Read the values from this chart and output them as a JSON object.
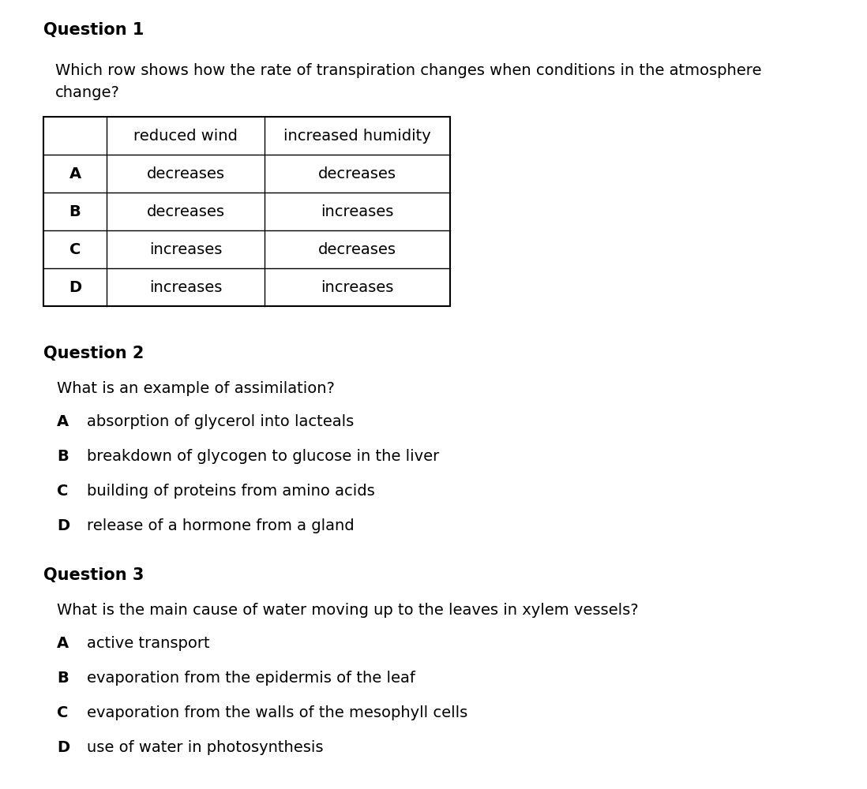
{
  "bg_color": "#ffffff",
  "q1_label": "Question 1",
  "q1_text_line1": "Which row shows how the rate of transpiration changes when conditions in the atmosphere",
  "q1_text_line2": "change?",
  "table_header": [
    "",
    "reduced wind",
    "increased humidity"
  ],
  "table_rows": [
    [
      "A",
      "decreases",
      "decreases"
    ],
    [
      "B",
      "decreases",
      "increases"
    ],
    [
      "C",
      "increases",
      "decreases"
    ],
    [
      "D",
      "increases",
      "increases"
    ]
  ],
  "q2_label": "Question 2",
  "q2_text": "What is an example of assimilation?",
  "q2_options": [
    [
      "A",
      "absorption of glycerol into lacteals"
    ],
    [
      "B",
      "breakdown of glycogen to glucose in the liver"
    ],
    [
      "C",
      "building of proteins from amino acids"
    ],
    [
      "D",
      "release of a hormone from a gland"
    ]
  ],
  "q3_label": "Question 3",
  "q3_text": "What is the main cause of water moving up to the leaves in xylem vessels?",
  "q3_options": [
    [
      "A",
      "active transport"
    ],
    [
      "B",
      "evaporation from the epidermis of the leaf"
    ],
    [
      "C",
      "evaporation from the walls of the mesophyll cells"
    ],
    [
      "D",
      "use of water in photosynthesis"
    ]
  ],
  "font_color": "#000000",
  "label_fontsize": 15,
  "body_fontsize": 14,
  "table_fontsize": 14
}
